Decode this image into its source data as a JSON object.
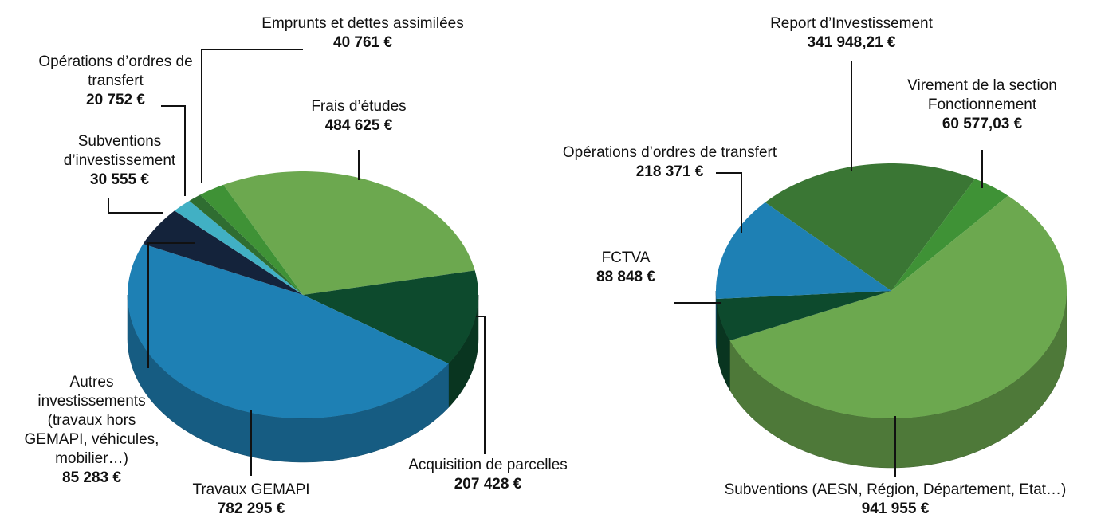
{
  "chart_data": [
    {
      "type": "pie",
      "categories": [
        "Frais d’études",
        "Acquisition de parcelles",
        "Travaux GEMAPI",
        "Autres investissements (travaux hors GEMAPI, véhicules, mobilier…)",
        "Subventions d’investissement",
        "Opérations d’ordres de transfert",
        "Emprunts et dettes assimilées"
      ],
      "values": [
        484625,
        207428,
        782295,
        85283,
        30555,
        20752,
        40761
      ],
      "value_labels": [
        "484 625 €",
        "207 428 €",
        "782 295 €",
        "85 283 €",
        "30 555 €",
        "20 752 €",
        "40 761 €"
      ],
      "colors": [
        "#6ca84f",
        "#0d4a2d",
        "#1e80b4",
        "#14233b",
        "#41b0c4",
        "#2f6d31",
        "#3f9236"
      ]
    },
    {
      "type": "pie",
      "categories": [
        "Report d’Investissement",
        "Virement de la section Fonctionnement",
        "Subventions (AESN, Région, Département, Etat…)",
        "FCTVA",
        "Opérations d’ordres de transfert"
      ],
      "values": [
        341948.21,
        60577.03,
        941955,
        88848,
        218371
      ],
      "value_labels": [
        "341 948,21 €",
        "60 577,03 €",
        "941 955 €",
        "88 848 €",
        "218 371 €"
      ],
      "colors": [
        "#3a7634",
        "#3f9236",
        "#6ca84f",
        "#0d4a2d",
        "#1e80b4"
      ]
    }
  ]
}
